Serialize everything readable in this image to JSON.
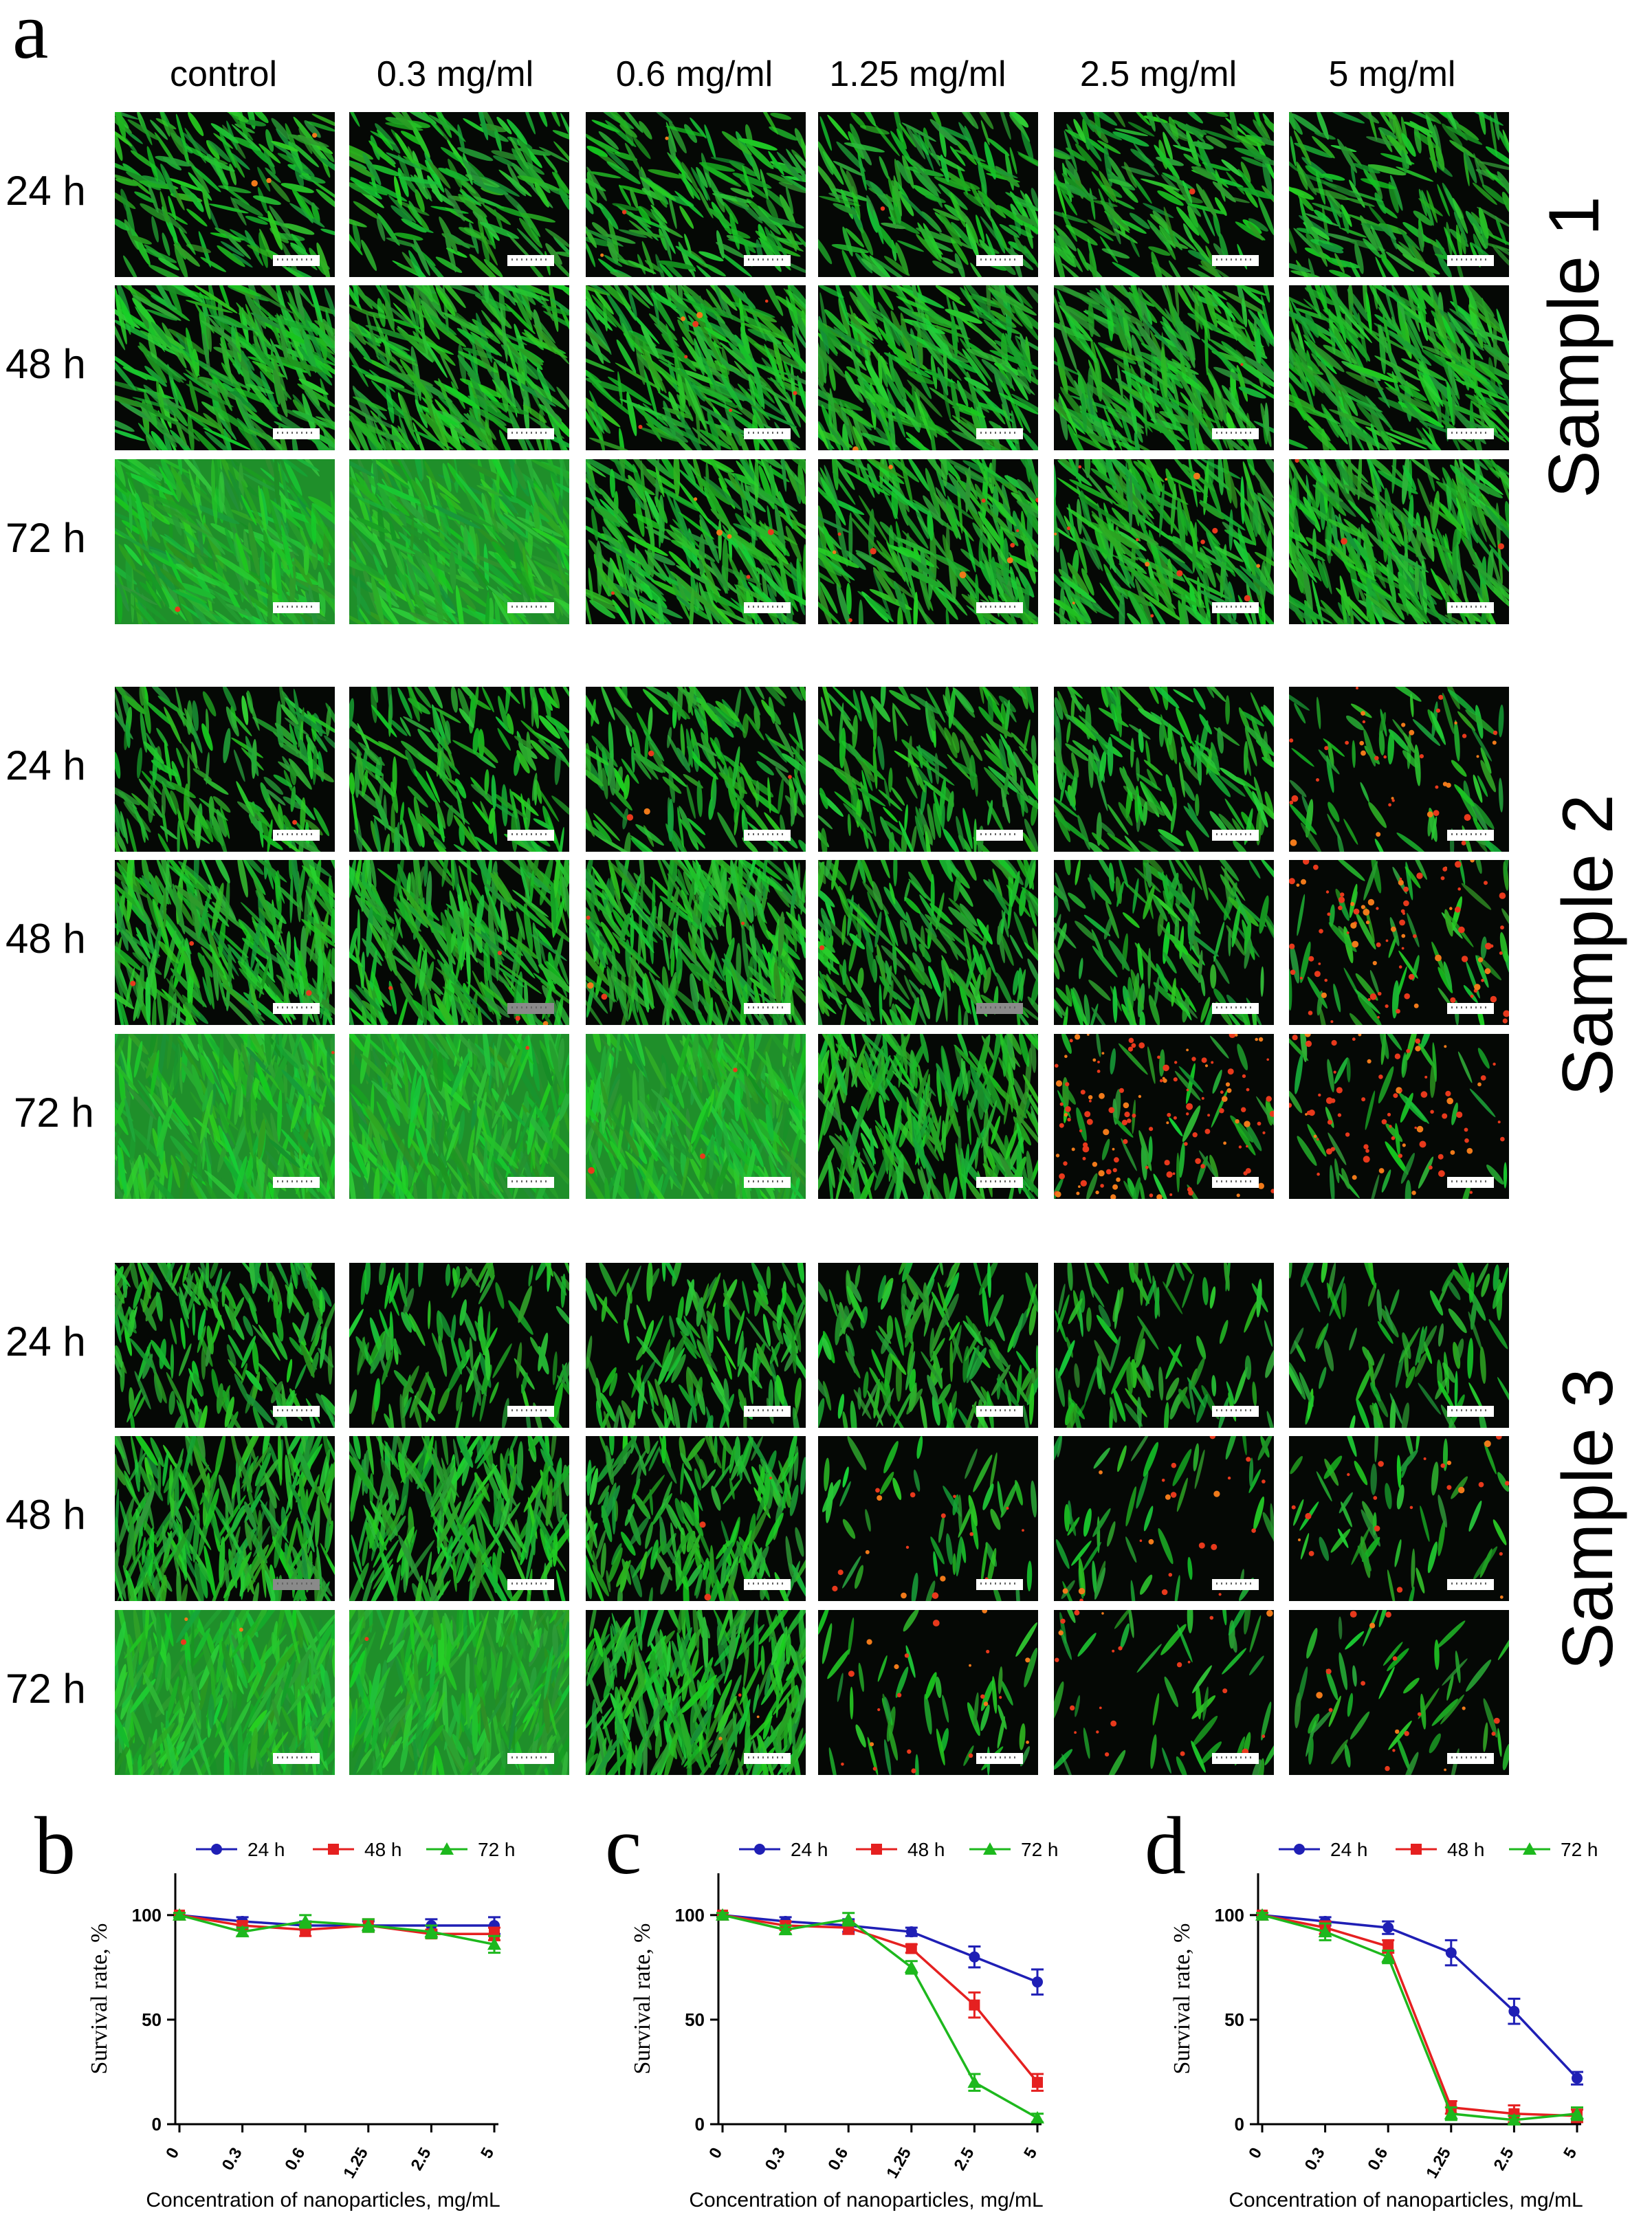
{
  "figure_a": {
    "letter": "a",
    "concentrations": [
      "control",
      "0.3 mg/ml",
      "0.6 mg/ml",
      "1.25 mg/ml",
      "2.5 mg/ml",
      "5 mg/ml"
    ],
    "times": [
      "24 h",
      "48 h",
      "72 h"
    ],
    "samples": [
      "Sample 1",
      "Sample 2",
      "Sample 3"
    ],
    "stain_colors": {
      "live": "#1fae2e",
      "dead": "#e8391c",
      "background": "#050805"
    },
    "tiles": [
      [
        [
          0.55,
          0.02
        ],
        [
          0.55,
          0.0
        ],
        [
          0.55,
          0.02
        ],
        [
          0.55,
          0.01
        ],
        [
          0.58,
          0.01
        ],
        [
          0.58,
          0.0
        ]
      ],
      [
        [
          0.85,
          0.0
        ],
        [
          0.85,
          0.0
        ],
        [
          0.75,
          0.06
        ],
        [
          0.8,
          0.01
        ],
        [
          0.8,
          0.01
        ],
        [
          0.8,
          0.0
        ]
      ],
      [
        [
          0.98,
          0.01
        ],
        [
          0.98,
          0.0
        ],
        [
          0.85,
          0.04
        ],
        [
          0.7,
          0.08
        ],
        [
          0.75,
          0.1
        ],
        [
          0.9,
          0.02
        ]
      ],
      [
        [
          0.5,
          0.01
        ],
        [
          0.5,
          0.0
        ],
        [
          0.5,
          0.03
        ],
        [
          0.45,
          0.0
        ],
        [
          0.45,
          0.0
        ],
        [
          0.12,
          0.25
        ]
      ],
      [
        [
          0.85,
          0.02
        ],
        [
          0.85,
          0.03
        ],
        [
          0.9,
          0.03
        ],
        [
          0.6,
          0.01
        ],
        [
          0.4,
          0.0
        ],
        [
          0.08,
          0.6
        ]
      ],
      [
        [
          0.98,
          0.01
        ],
        [
          0.98,
          0.01
        ],
        [
          0.95,
          0.02
        ],
        [
          0.75,
          0.0
        ],
        [
          0.03,
          0.9
        ],
        [
          0.02,
          0.5
        ]
      ],
      [
        [
          0.55,
          0.0
        ],
        [
          0.3,
          0.0
        ],
        [
          0.4,
          0.0
        ],
        [
          0.4,
          0.0
        ],
        [
          0.2,
          0.0
        ],
        [
          0.18,
          0.0
        ]
      ],
      [
        [
          0.8,
          0.0
        ],
        [
          0.7,
          0.0
        ],
        [
          0.6,
          0.02
        ],
        [
          0.02,
          0.12
        ],
        [
          0.03,
          0.15
        ],
        [
          0.03,
          0.15
        ]
      ],
      [
        [
          0.95,
          0.03
        ],
        [
          0.95,
          0.01
        ],
        [
          0.9,
          0.02
        ],
        [
          0.01,
          0.15
        ],
        [
          0.01,
          0.15
        ],
        [
          0.01,
          0.12
        ]
      ]
    ],
    "gray_scalebars": [
      [
        4,
        1
      ],
      [
        4,
        3
      ],
      [
        7,
        0
      ]
    ]
  },
  "chart_data": [
    {
      "type": "line",
      "letter": "b",
      "x": [
        "0",
        "0.3",
        "0.6",
        "1.25",
        "2.5",
        "5"
      ],
      "xlabel": "Concentration of nanoparticles, mg/mL",
      "ylabel": "Survival rate, %",
      "yticks": [
        "0",
        "50",
        "100"
      ],
      "ylim": [
        0,
        120
      ],
      "legend_position": "top",
      "series": [
        {
          "name": "24 h",
          "color": "#1f1fb5",
          "marker": "circle",
          "values": [
            100,
            97,
            95,
            95,
            95,
            95
          ],
          "err": [
            1,
            2,
            2,
            2,
            3,
            4
          ]
        },
        {
          "name": "48 h",
          "color": "#e52020",
          "marker": "square",
          "values": [
            100,
            95,
            93,
            95,
            91,
            91
          ],
          "err": [
            1,
            2,
            3,
            3,
            2,
            3
          ]
        },
        {
          "name": "72 h",
          "color": "#1db81d",
          "marker": "triangle",
          "values": [
            100,
            92,
            97,
            95,
            92,
            86
          ],
          "err": [
            1,
            2,
            3,
            3,
            3,
            4
          ]
        }
      ]
    },
    {
      "type": "line",
      "letter": "c",
      "x": [
        "0",
        "0.3",
        "0.6",
        "1.25",
        "2.5",
        "5"
      ],
      "xlabel": "Concentration of nanoparticles, mg/mL",
      "ylabel": "Survival rate, %",
      "yticks": [
        "0",
        "50",
        "100"
      ],
      "ylim": [
        0,
        120
      ],
      "legend_position": "top",
      "series": [
        {
          "name": "24 h",
          "color": "#1f1fb5",
          "marker": "circle",
          "values": [
            100,
            97,
            95,
            92,
            80,
            68
          ],
          "err": [
            1,
            2,
            3,
            2,
            5,
            6
          ]
        },
        {
          "name": "48 h",
          "color": "#e52020",
          "marker": "square",
          "values": [
            100,
            95,
            94,
            84,
            57,
            20
          ],
          "err": [
            1,
            2,
            3,
            2,
            6,
            4
          ]
        },
        {
          "name": "72 h",
          "color": "#1db81d",
          "marker": "triangle",
          "values": [
            100,
            93,
            98,
            75,
            20,
            3
          ],
          "err": [
            1,
            2,
            3,
            3,
            4,
            2
          ]
        }
      ]
    },
    {
      "type": "line",
      "letter": "d",
      "x": [
        "0",
        "0.3",
        "0.6",
        "1.25",
        "2.5",
        "5"
      ],
      "xlabel": "Concentration of nanoparticles, mg/mL",
      "ylabel": "Survival rate, %",
      "yticks": [
        "0",
        "50",
        "100"
      ],
      "ylim": [
        0,
        120
      ],
      "legend_position": "top",
      "series": [
        {
          "name": "24 h",
          "color": "#1f1fb5",
          "marker": "circle",
          "values": [
            100,
            97,
            94,
            82,
            54,
            22
          ],
          "err": [
            1,
            2,
            3,
            6,
            6,
            3
          ]
        },
        {
          "name": "48 h",
          "color": "#e52020",
          "marker": "square",
          "values": [
            100,
            94,
            85,
            8,
            5,
            4
          ],
          "err": [
            1,
            3,
            3,
            3,
            4,
            3
          ]
        },
        {
          "name": "72 h",
          "color": "#1db81d",
          "marker": "triangle",
          "values": [
            100,
            92,
            80,
            5,
            2,
            5
          ],
          "err": [
            1,
            4,
            3,
            3,
            2,
            3
          ]
        }
      ]
    }
  ]
}
